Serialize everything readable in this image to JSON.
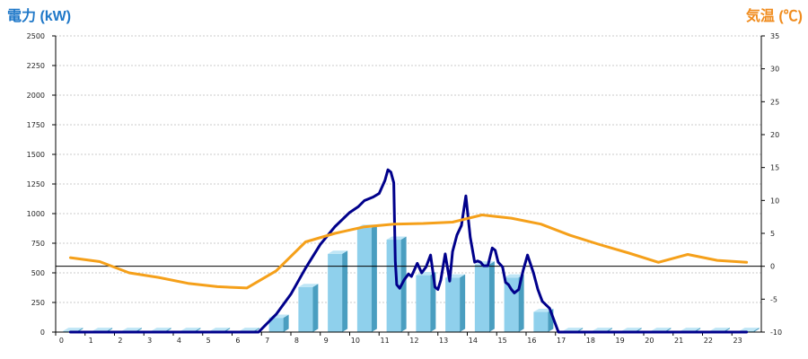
{
  "chart_data": {
    "type": "bar",
    "left_axis_title": "電力 (kW)",
    "right_axis_title": "気温 (℃)",
    "colors": {
      "left_title": "#1f78c8",
      "right_title": "#f08c1e",
      "bar_face": "#8fd0ec",
      "bar_side": "#4a9ec0",
      "bar_top": "#bfe6f6",
      "power_line": "#00008b",
      "temp_line": "#f5a01a",
      "grid": "#bbbbbb"
    },
    "categories": [
      "0",
      "1",
      "2",
      "3",
      "4",
      "5",
      "6",
      "7",
      "8",
      "9",
      "10",
      "11",
      "12",
      "13",
      "14",
      "15",
      "16",
      "17",
      "18",
      "19",
      "20",
      "21",
      "22",
      "23"
    ],
    "left_ticks": [
      "0",
      "250",
      "500",
      "750",
      "1000",
      "1250",
      "1500",
      "1750",
      "2000",
      "2250",
      "2500"
    ],
    "right_ticks": [
      "-10",
      "-5",
      "0",
      "5",
      "10",
      "15",
      "20",
      "25",
      "30",
      "35"
    ],
    "ylim_left": [
      0,
      2500
    ],
    "ylim_right": [
      -10,
      35
    ],
    "grid": true,
    "series": [
      {
        "kind": "bar",
        "axis": "left",
        "values": [
          10,
          10,
          10,
          10,
          10,
          10,
          10,
          120,
          380,
          660,
          880,
          780,
          480,
          460,
          570,
          460,
          170,
          10,
          10,
          10,
          10,
          10,
          10,
          10
        ]
      },
      {
        "kind": "line",
        "axis": "left",
        "x": [
          0,
          6,
          6.4,
          7,
          7.5,
          8,
          8.5,
          9,
          9.5,
          9.8,
          10,
          10.3,
          10.5,
          10.7,
          10.8,
          10.9,
          11,
          11.05,
          11.1,
          11.2,
          11.35,
          11.5,
          11.6,
          11.8,
          11.95,
          12.1,
          12.25,
          12.4,
          12.5,
          12.6,
          12.75,
          12.9,
          13,
          13.15,
          13.3,
          13.45,
          13.6,
          13.75,
          13.85,
          13.95,
          14.05,
          14.2,
          14.35,
          14.45,
          14.55,
          14.7,
          14.8,
          14.9,
          15,
          15.1,
          15.25,
          15.4,
          15.55,
          15.75,
          15.9,
          16.05,
          16.3,
          16.6,
          17,
          20,
          23
        ],
        "y": [
          0,
          0,
          0,
          150,
          320,
          540,
          740,
          890,
          1010,
          1060,
          1110,
          1140,
          1170,
          1280,
          1370,
          1350,
          1260,
          600,
          400,
          370,
          440,
          490,
          470,
          580,
          500,
          550,
          650,
          380,
          360,
          440,
          660,
          430,
          680,
          820,
          900,
          1150,
          800,
          590,
          600,
          590,
          560,
          560,
          710,
          690,
          590,
          550,
          420,
          400,
          360,
          330,
          360,
          520,
          650,
          500,
          360,
          260,
          200,
          0,
          0,
          0,
          0
        ]
      },
      {
        "kind": "line",
        "axis": "right",
        "x": [
          0,
          1,
          2,
          3,
          4,
          5,
          6,
          7,
          8,
          9,
          10,
          11,
          12,
          13,
          14,
          15,
          16,
          17,
          18,
          19,
          20,
          21,
          22,
          23
        ],
        "y": [
          1.3,
          0.7,
          -1,
          -1.7,
          -2.6,
          -3.1,
          -3.3,
          -0.7,
          3.7,
          5,
          6,
          6.4,
          6.5,
          6.7,
          7.8,
          7.3,
          6.4,
          4.7,
          3.3,
          2,
          0.6,
          1.8,
          0.9,
          0.6
        ]
      }
    ]
  }
}
